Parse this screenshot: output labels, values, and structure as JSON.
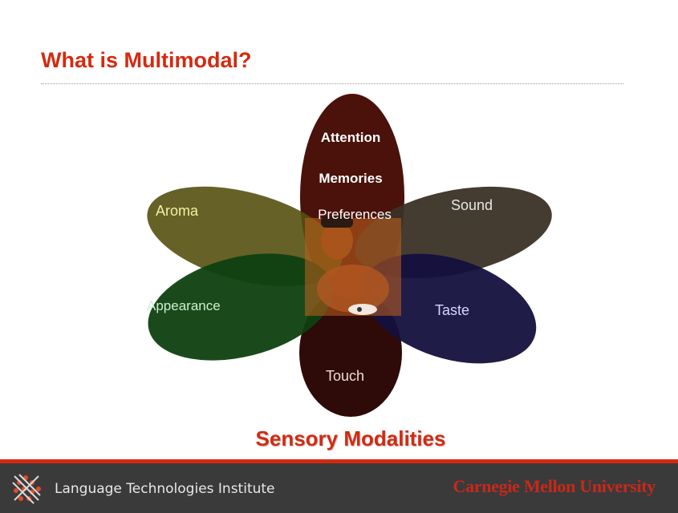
{
  "slide": {
    "title": "What is Multimodal?",
    "caption": "Sensory Modalities"
  },
  "diagram": {
    "center_labels": [
      "Attention",
      "Memories",
      "Preferences"
    ],
    "petals": {
      "aroma": "Aroma",
      "sound": "Sound",
      "appearance": "Appearance",
      "taste": "Taste",
      "touch": "Touch"
    },
    "colors": {
      "top_petal": "#4a120a",
      "bottom_petal": "#2e0a08",
      "aroma_petal": "#55500f",
      "sound_petal": "#3b3126",
      "appearance_petal": "#0e4010",
      "taste_petal": "#14103e"
    }
  },
  "footer": {
    "institute": "Language Technologies Institute",
    "university": "Carnegie Mellon University",
    "brand_color": "#d42a10"
  }
}
